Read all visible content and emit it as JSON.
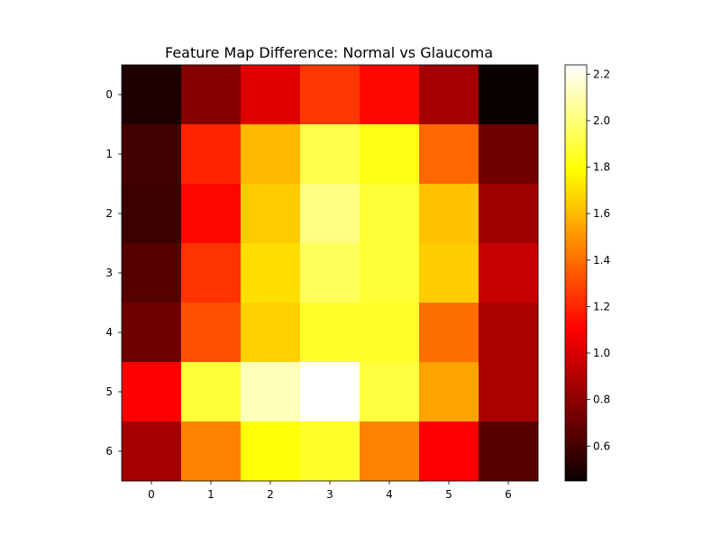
{
  "chart_data": {
    "type": "heatmap",
    "title": "Feature Map Difference: Normal vs Glaucoma",
    "xlabel": "",
    "ylabel": "",
    "x_categories": [
      "0",
      "1",
      "2",
      "3",
      "4",
      "5",
      "6"
    ],
    "y_categories": [
      "0",
      "1",
      "2",
      "3",
      "4",
      "5",
      "6"
    ],
    "values": [
      [
        0.5,
        0.78,
        1.02,
        1.25,
        1.12,
        0.86,
        0.45
      ],
      [
        0.6,
        1.2,
        1.6,
        1.92,
        1.82,
        1.38,
        0.72
      ],
      [
        0.58,
        1.12,
        1.65,
        2.02,
        1.88,
        1.62,
        0.85
      ],
      [
        0.65,
        1.24,
        1.7,
        1.95,
        1.88,
        1.65,
        0.95
      ],
      [
        0.72,
        1.32,
        1.66,
        1.86,
        1.86,
        1.4,
        0.88
      ],
      [
        1.1,
        1.88,
        2.12,
        2.24,
        1.9,
        1.54,
        0.88
      ],
      [
        0.86,
        1.45,
        1.8,
        1.86,
        1.45,
        1.1,
        0.65
      ]
    ],
    "colormap": "hot",
    "colorbar": {
      "vmin": 0.45,
      "vmax": 2.24,
      "ticks": [
        "0.6",
        "0.8",
        "1.0",
        "1.2",
        "1.4",
        "1.6",
        "1.8",
        "2.0",
        "2.2"
      ]
    }
  }
}
